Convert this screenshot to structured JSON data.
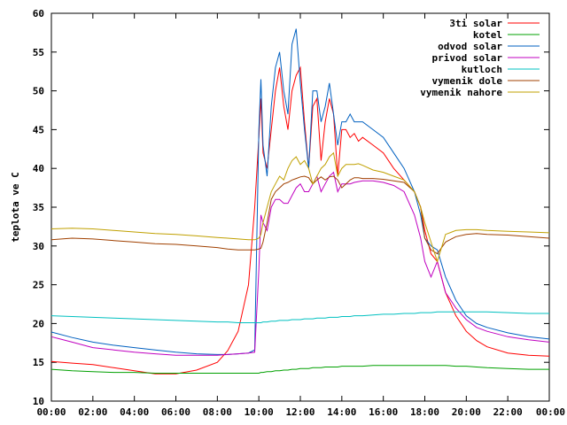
{
  "chart_data": {
    "type": "line",
    "title": "",
    "xlabel": "",
    "ylabel": "teplota ve C",
    "xlim": [
      "00:00",
      "24:00"
    ],
    "ylim": [
      10,
      60
    ],
    "x_tick_labels": [
      "00:00",
      "02:00",
      "04:00",
      "06:00",
      "08:00",
      "10:00",
      "12:00",
      "14:00",
      "16:00",
      "18:00",
      "20:00",
      "22:00",
      "00:00"
    ],
    "y_tick_labels": [
      "10",
      "15",
      "20",
      "25",
      "30",
      "35",
      "40",
      "45",
      "50",
      "55",
      "60"
    ],
    "grid": false,
    "legend_position": "top-right",
    "x_hours": [
      0,
      1,
      2,
      3,
      4,
      5,
      6,
      7,
      8,
      8.5,
      9,
      9.5,
      9.8,
      10,
      10.1,
      10.2,
      10.4,
      10.6,
      10.8,
      11,
      11.2,
      11.4,
      11.6,
      11.8,
      12,
      12.2,
      12.4,
      12.6,
      12.8,
      13,
      13.2,
      13.4,
      13.6,
      13.8,
      14,
      14.2,
      14.4,
      14.6,
      14.8,
      15,
      15.5,
      16,
      16.5,
      17,
      17.5,
      17.8,
      18,
      18.3,
      18.6,
      19,
      19.5,
      20,
      20.5,
      21,
      22,
      23,
      24
    ],
    "series": [
      {
        "name": "3ti solar",
        "color": "#ff0000",
        "values": [
          15.1,
          14.9,
          14.7,
          14.3,
          13.9,
          13.5,
          13.5,
          14.0,
          15.0,
          16.5,
          19,
          25,
          35,
          44,
          49,
          42,
          40,
          45,
          50,
          53,
          48,
          45,
          50,
          52,
          53,
          46,
          40,
          48,
          49,
          41,
          46,
          49,
          47,
          39,
          45,
          45,
          44,
          44.5,
          43.5,
          44,
          43,
          42,
          40,
          38.5,
          37,
          35,
          32,
          29,
          28,
          24,
          21,
          19,
          17.8,
          17,
          16.2,
          15.9,
          15.8
        ]
      },
      {
        "name": "kotel",
        "color": "#00a000",
        "values": [
          14.1,
          13.9,
          13.8,
          13.7,
          13.7,
          13.6,
          13.6,
          13.6,
          13.6,
          13.6,
          13.6,
          13.6,
          13.6,
          13.6,
          13.7,
          13.7,
          13.8,
          13.8,
          13.9,
          13.9,
          14.0,
          14.0,
          14.1,
          14.1,
          14.2,
          14.2,
          14.2,
          14.3,
          14.3,
          14.3,
          14.4,
          14.4,
          14.4,
          14.4,
          14.5,
          14.5,
          14.5,
          14.5,
          14.5,
          14.5,
          14.6,
          14.6,
          14.6,
          14.6,
          14.6,
          14.6,
          14.6,
          14.6,
          14.6,
          14.6,
          14.5,
          14.5,
          14.4,
          14.3,
          14.2,
          14.1,
          14.1
        ]
      },
      {
        "name": "odvod solar",
        "color": "#0060c0",
        "values": [
          18.9,
          18.2,
          17.6,
          17.2,
          16.9,
          16.6,
          16.3,
          16.1,
          16.0,
          16.0,
          16.1,
          16.2,
          16.6,
          45,
          51.5,
          43,
          39,
          48,
          53,
          55,
          50,
          47,
          56,
          58,
          51,
          45,
          40,
          50,
          50,
          46,
          48,
          51,
          47,
          43,
          46,
          46,
          47,
          46,
          46,
          46,
          45,
          44,
          42,
          40,
          37,
          34,
          31,
          30,
          29.5,
          26,
          23,
          21,
          20,
          19.5,
          18.8,
          18.3,
          18.0
        ]
      },
      {
        "name": "privod solar",
        "color": "#c000c0",
        "values": [
          18.3,
          17.6,
          16.9,
          16.6,
          16.3,
          16.1,
          15.9,
          15.9,
          15.9,
          16.0,
          16.1,
          16.2,
          16.3,
          27,
          34,
          33,
          32,
          35,
          36,
          36,
          35.5,
          35.5,
          36.5,
          37.5,
          38,
          37,
          37,
          38,
          39,
          37,
          38,
          39,
          39.5,
          37,
          38,
          38,
          38,
          38.2,
          38.3,
          38.4,
          38.4,
          38.2,
          37.8,
          37,
          34,
          31,
          28,
          26,
          28,
          24,
          22,
          20.5,
          19.5,
          19,
          18.3,
          17.9,
          17.6
        ]
      },
      {
        "name": "kutloch",
        "color": "#00c0c0",
        "values": [
          21.0,
          20.9,
          20.8,
          20.7,
          20.6,
          20.5,
          20.4,
          20.3,
          20.2,
          20.2,
          20.1,
          20.1,
          20.1,
          20.1,
          20.1,
          20.2,
          20.2,
          20.3,
          20.3,
          20.4,
          20.4,
          20.4,
          20.5,
          20.5,
          20.5,
          20.6,
          20.6,
          20.6,
          20.7,
          20.7,
          20.7,
          20.8,
          20.8,
          20.8,
          20.9,
          20.9,
          20.9,
          21.0,
          21.0,
          21.0,
          21.1,
          21.2,
          21.2,
          21.3,
          21.3,
          21.4,
          21.4,
          21.4,
          21.5,
          21.5,
          21.5,
          21.5,
          21.5,
          21.5,
          21.4,
          21.3,
          21.3
        ]
      },
      {
        "name": "vymenik dole",
        "color": "#a04000",
        "values": [
          30.8,
          31.0,
          30.9,
          30.7,
          30.5,
          30.3,
          30.2,
          30.0,
          29.8,
          29.6,
          29.5,
          29.5,
          29.5,
          29.6,
          29.7,
          30.5,
          33,
          36,
          37,
          37.5,
          38,
          38.2,
          38.5,
          38.7,
          38.9,
          39,
          38.8,
          38,
          38.5,
          38.9,
          38.5,
          38.9,
          39,
          38.5,
          37.5,
          38,
          38.5,
          38.8,
          38.8,
          38.7,
          38.7,
          38.6,
          38.4,
          38.2,
          37,
          35,
          31,
          29.5,
          29,
          30.5,
          31.2,
          31.5,
          31.6,
          31.5,
          31.4,
          31.2,
          31.0
        ]
      },
      {
        "name": "vymenik nahore",
        "color": "#c0a000",
        "values": [
          32.2,
          32.3,
          32.2,
          32.0,
          31.8,
          31.6,
          31.5,
          31.3,
          31.1,
          31.0,
          30.9,
          30.8,
          30.8,
          31.0,
          31.5,
          33,
          35,
          37,
          38,
          39,
          38.5,
          40,
          41,
          41.5,
          40.5,
          41,
          40,
          38,
          39,
          40,
          40.5,
          41.5,
          42,
          39,
          40,
          40.5,
          40.5,
          40.5,
          40.6,
          40.4,
          39.8,
          39.5,
          39,
          38.5,
          37,
          35,
          33,
          30.5,
          28,
          31.5,
          32.0,
          32.1,
          32.1,
          32.0,
          31.9,
          31.8,
          31.7
        ]
      }
    ]
  }
}
